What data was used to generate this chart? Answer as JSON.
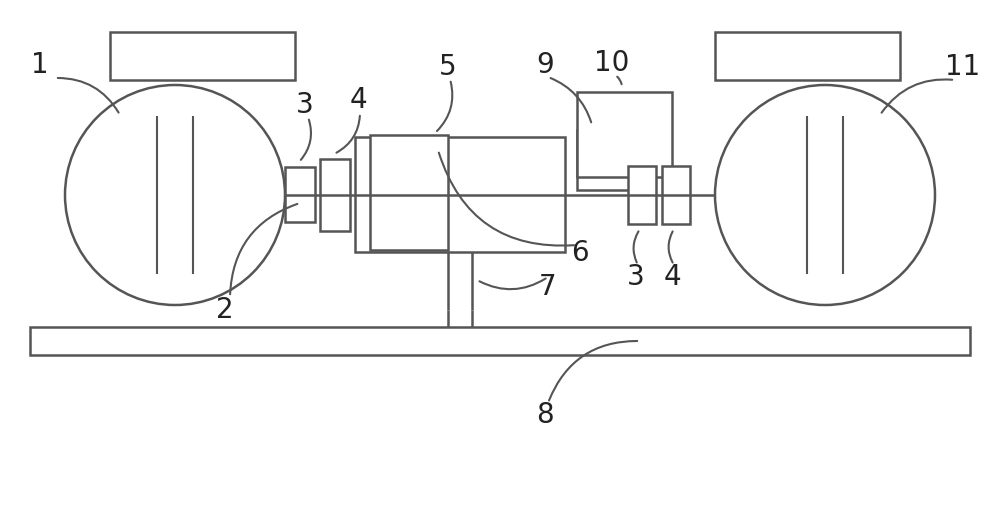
{
  "bg_color": "#ffffff",
  "line_color": "#555555",
  "line_width": 1.8,
  "fig_width": 10.0,
  "fig_height": 5.15,
  "dpi": 100
}
